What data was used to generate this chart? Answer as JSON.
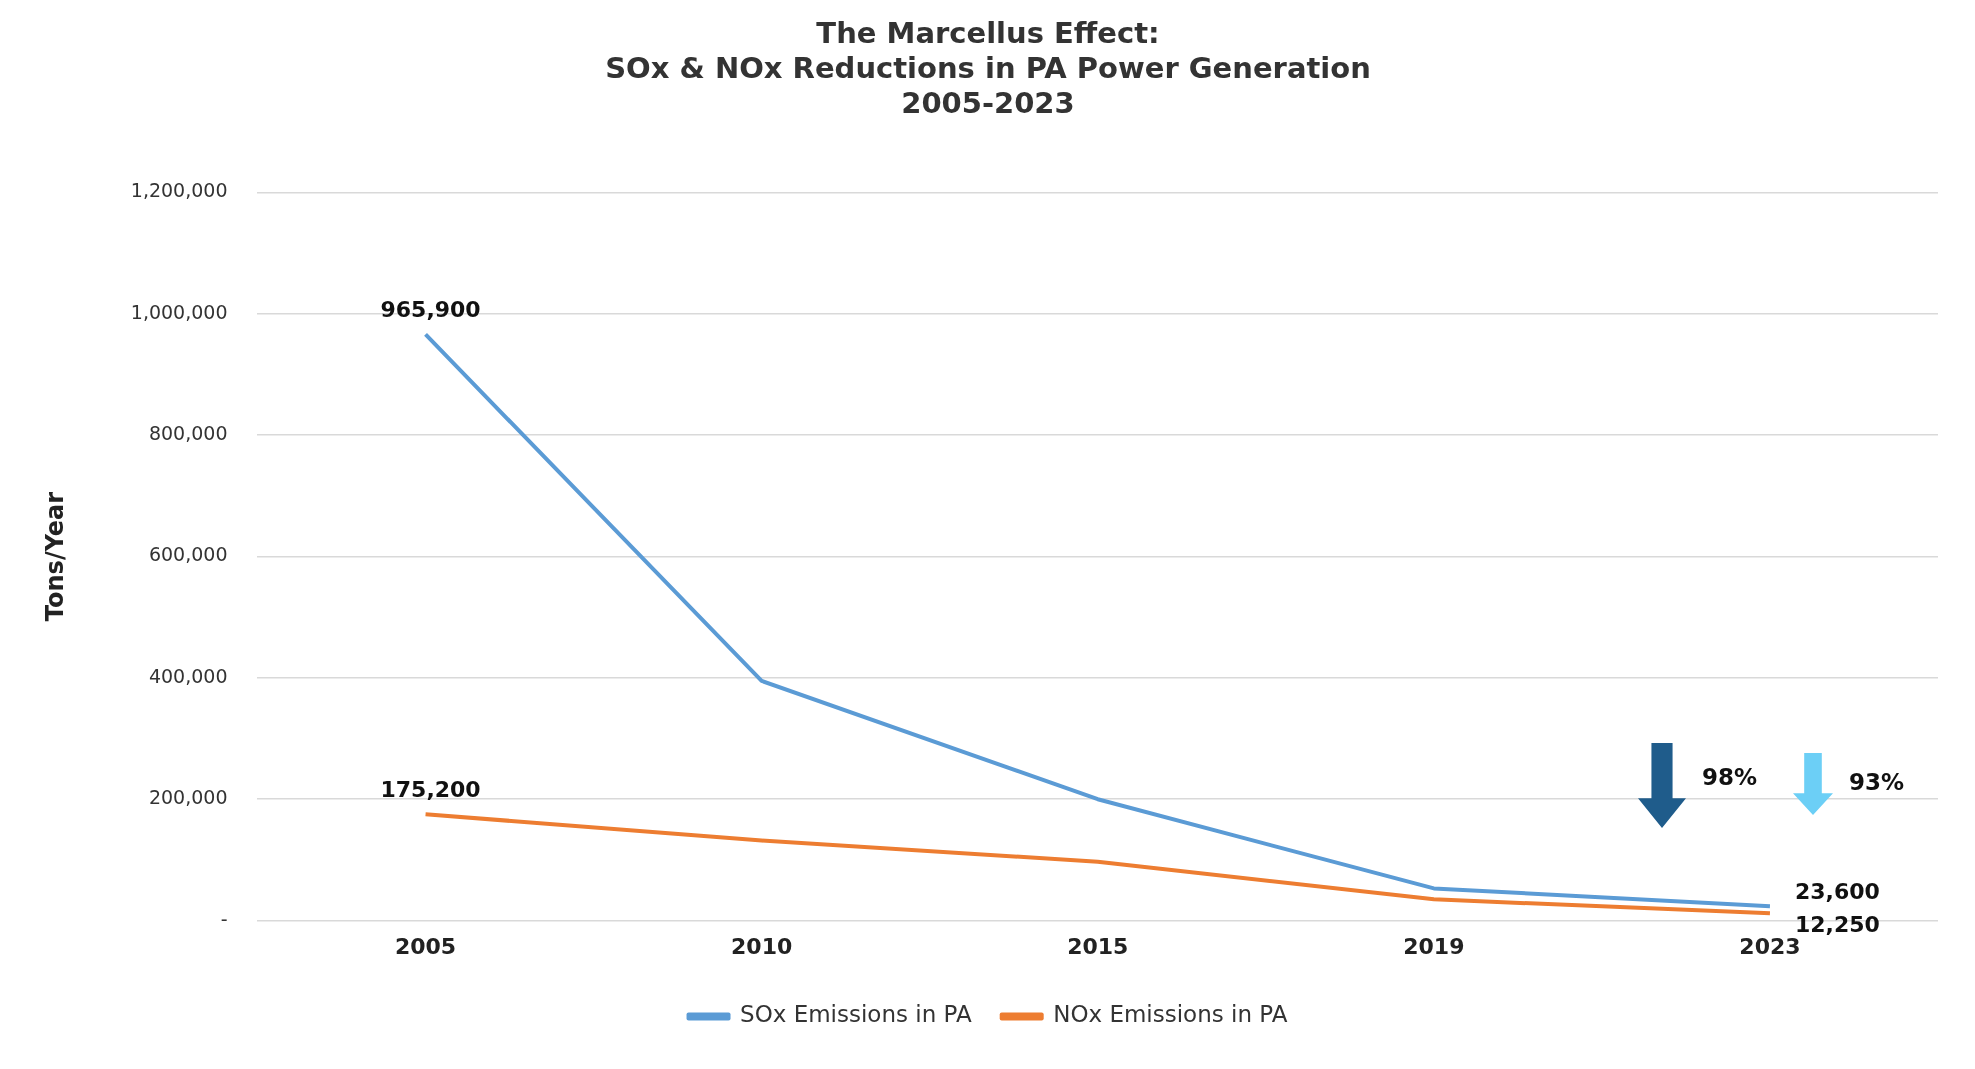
{
  "chart_data": {
    "type": "line",
    "title": "The Marcellus Effect:\nSOx & NOx Reductions in PA Power Generation\n2005-2023",
    "ylabel": "Tons/Year",
    "categories": [
      "2005",
      "2010",
      "2015",
      "2019",
      "2023"
    ],
    "series": [
      {
        "name": "SOx Emissions in PA",
        "color": "#5b9bd5",
        "values": [
          965900,
          395000,
          200000,
          53000,
          23600
        ],
        "value_labels": [
          "965,900",
          null,
          null,
          null,
          "23,600"
        ]
      },
      {
        "name": "NOx Emissions in PA",
        "color": "#ed7d31",
        "values": [
          175200,
          132000,
          97000,
          35000,
          12250
        ],
        "value_labels": [
          "175,200",
          null,
          null,
          null,
          "12,250"
        ]
      }
    ],
    "ylim": [
      0,
      1200000
    ],
    "yticks": [
      {
        "value": 0,
        "label": "-"
      },
      {
        "value": 200000,
        "label": "200,000"
      },
      {
        "value": 400000,
        "label": "400,000"
      },
      {
        "value": 600000,
        "label": "600,000"
      },
      {
        "value": 800000,
        "label": "800,000"
      },
      {
        "value": 1000000,
        "label": "1,000,000"
      },
      {
        "value": 1200000,
        "label": "1,200,000"
      }
    ],
    "grid": "y",
    "legend": "bottom",
    "marker": "none",
    "line_style": "solid",
    "annotations": [
      "98%",
      "93%"
    ]
  }
}
